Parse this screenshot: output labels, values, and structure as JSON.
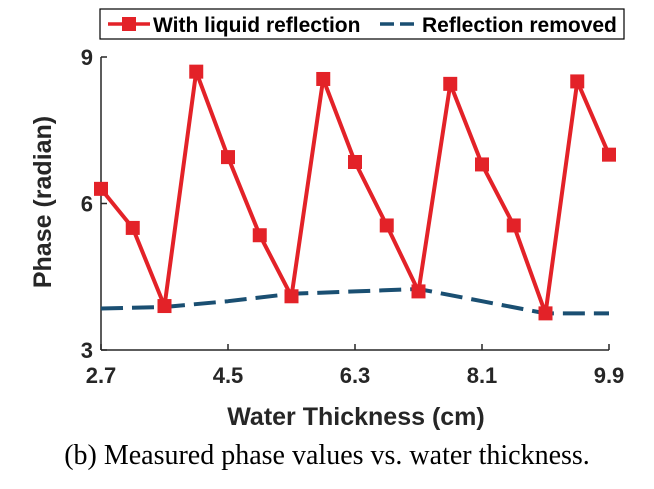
{
  "caption": "(b) Measured phase values vs. water thickness.",
  "chart_data": {
    "type": "line",
    "title": "",
    "xlabel": "Water Thickness (cm)",
    "ylabel": "Phase (radian)",
    "xlim": [
      2.7,
      9.9
    ],
    "ylim": [
      3,
      9
    ],
    "xticks": [
      2.7,
      4.5,
      6.3,
      8.1,
      9.9
    ],
    "yticks": [
      3,
      6,
      9
    ],
    "xtick_labels": [
      "2.7",
      "4.5",
      "6.3",
      "8.1",
      "9.9"
    ],
    "ytick_labels": [
      "3",
      "6",
      "9"
    ],
    "grid": false,
    "legend_position": "top",
    "series": [
      {
        "name": "With liquid reflection",
        "color": "#e32228",
        "line_style": "solid",
        "marker": "square",
        "x": [
          2.7,
          3.15,
          3.6,
          4.05,
          4.5,
          4.95,
          5.4,
          5.85,
          6.3,
          6.75,
          7.2,
          7.65,
          8.1,
          8.55,
          9.0,
          9.45,
          9.9
        ],
        "y": [
          6.3,
          5.5,
          3.9,
          8.7,
          6.95,
          5.35,
          4.1,
          8.55,
          6.85,
          5.55,
          4.2,
          8.45,
          6.8,
          5.55,
          3.75,
          8.5,
          7.0
        ]
      },
      {
        "name": "Reflection removed",
        "color": "#1a4f72",
        "line_style": "dashed",
        "marker": "none",
        "x": [
          2.7,
          3.6,
          4.5,
          5.4,
          6.3,
          7.2,
          8.1,
          9.0,
          9.9
        ],
        "y": [
          3.85,
          3.88,
          4.0,
          4.15,
          4.2,
          4.25,
          4.0,
          3.75,
          3.75
        ]
      }
    ]
  }
}
